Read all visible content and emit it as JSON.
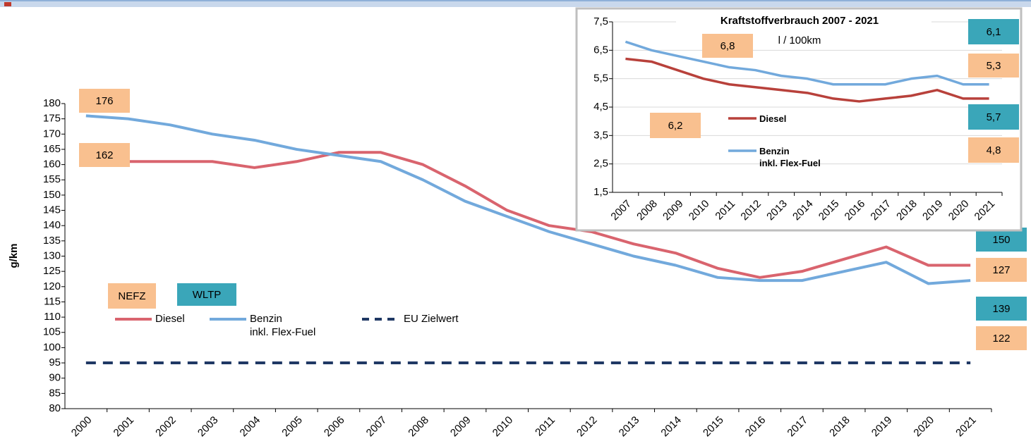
{
  "chart_data": [
    {
      "type": "line",
      "y_label": "g/km",
      "categories": [
        "2000",
        "2001",
        "2002",
        "2003",
        "2004",
        "2005",
        "2006",
        "2007",
        "2008",
        "2009",
        "2010",
        "2011",
        "2012",
        "2013",
        "2014",
        "2015",
        "2016",
        "2017",
        "2018",
        "2019",
        "2020",
        "2021"
      ],
      "series": [
        {
          "name": "Diesel",
          "color": "#d9646e",
          "values": [
            162,
            161,
            161,
            161,
            159,
            161,
            164,
            164,
            160,
            153,
            145,
            140,
            138,
            134,
            131,
            126,
            123,
            125,
            129,
            133,
            127,
            127
          ]
        },
        {
          "name": "Benzin\ninkl. Flex-Fuel",
          "color": "#72a9dc",
          "values": [
            176,
            175,
            173,
            170,
            168,
            165,
            163,
            161,
            155,
            148,
            143,
            138,
            134,
            130,
            127,
            123,
            122,
            122,
            125,
            128,
            121,
            122
          ]
        },
        {
          "name": "EU Zielwert",
          "color": "#1f3864",
          "dashed": true,
          "values": [
            95,
            95,
            95,
            95,
            95,
            95,
            95,
            95,
            95,
            95,
            95,
            95,
            95,
            95,
            95,
            95,
            95,
            95,
            95,
            95,
            95,
            95
          ]
        }
      ],
      "ylim": [
        80,
        180
      ],
      "yticks": [
        80,
        85,
        90,
        95,
        100,
        105,
        110,
        115,
        120,
        125,
        130,
        135,
        140,
        145,
        150,
        155,
        160,
        165,
        170,
        175,
        180
      ],
      "grid": false,
      "annotations": [
        {
          "text": "176",
          "color": "#f9c08f"
        },
        {
          "text": "162",
          "color": "#f9c08f"
        },
        {
          "text": "NEFZ",
          "color": "#f9c08f"
        },
        {
          "text": "WLTP",
          "color": "#3aa6b9"
        },
        {
          "text": "150",
          "color": "#3aa6b9"
        },
        {
          "text": "127",
          "color": "#f9c08f"
        },
        {
          "text": "139",
          "color": "#3aa6b9"
        },
        {
          "text": "122",
          "color": "#f9c08f"
        }
      ]
    },
    {
      "type": "line",
      "title": "Kraftstoffverbrauch 2007 - 2021",
      "subtitle": "l / 100km",
      "categories": [
        "2007",
        "2008",
        "2009",
        "2010",
        "2011",
        "2012",
        "2013",
        "2014",
        "2015",
        "2016",
        "2017",
        "2018",
        "2019",
        "2020",
        "2021"
      ],
      "series": [
        {
          "name": "Diesel",
          "color": "#b8413b",
          "values": [
            6.2,
            6.1,
            5.8,
            5.5,
            5.3,
            5.2,
            5.1,
            5.0,
            4.8,
            4.7,
            4.8,
            4.9,
            5.1,
            4.8,
            4.8
          ]
        },
        {
          "name": "Benzin\ninkl. Flex-Fuel",
          "color": "#72a9dc",
          "values": [
            6.8,
            6.5,
            6.3,
            6.1,
            5.9,
            5.8,
            5.6,
            5.5,
            5.3,
            5.3,
            5.3,
            5.5,
            5.6,
            5.3,
            5.3
          ]
        }
      ],
      "ylim": [
        1.5,
        7.5
      ],
      "yticks": [
        {
          "value": 1.5,
          "label": "1,5"
        },
        {
          "value": 2.5,
          "label": "2,5"
        },
        {
          "value": 3.5,
          "label": "3,5"
        },
        {
          "value": 4.5,
          "label": "4,5"
        },
        {
          "value": 5.5,
          "label": "5,5"
        },
        {
          "value": 6.5,
          "label": "6,5"
        },
        {
          "value": 7.5,
          "label": "7,5"
        }
      ],
      "grid": true,
      "annotations": [
        {
          "text": "6,8",
          "color": "#f9c08f"
        },
        {
          "text": "6,2",
          "color": "#f9c08f"
        },
        {
          "text": "6,1",
          "color": "#3aa6b9"
        },
        {
          "text": "5,3",
          "color": "#f9c08f"
        },
        {
          "text": "5,7",
          "color": "#3aa6b9"
        },
        {
          "text": "4,8",
          "color": "#f9c08f"
        }
      ]
    }
  ]
}
